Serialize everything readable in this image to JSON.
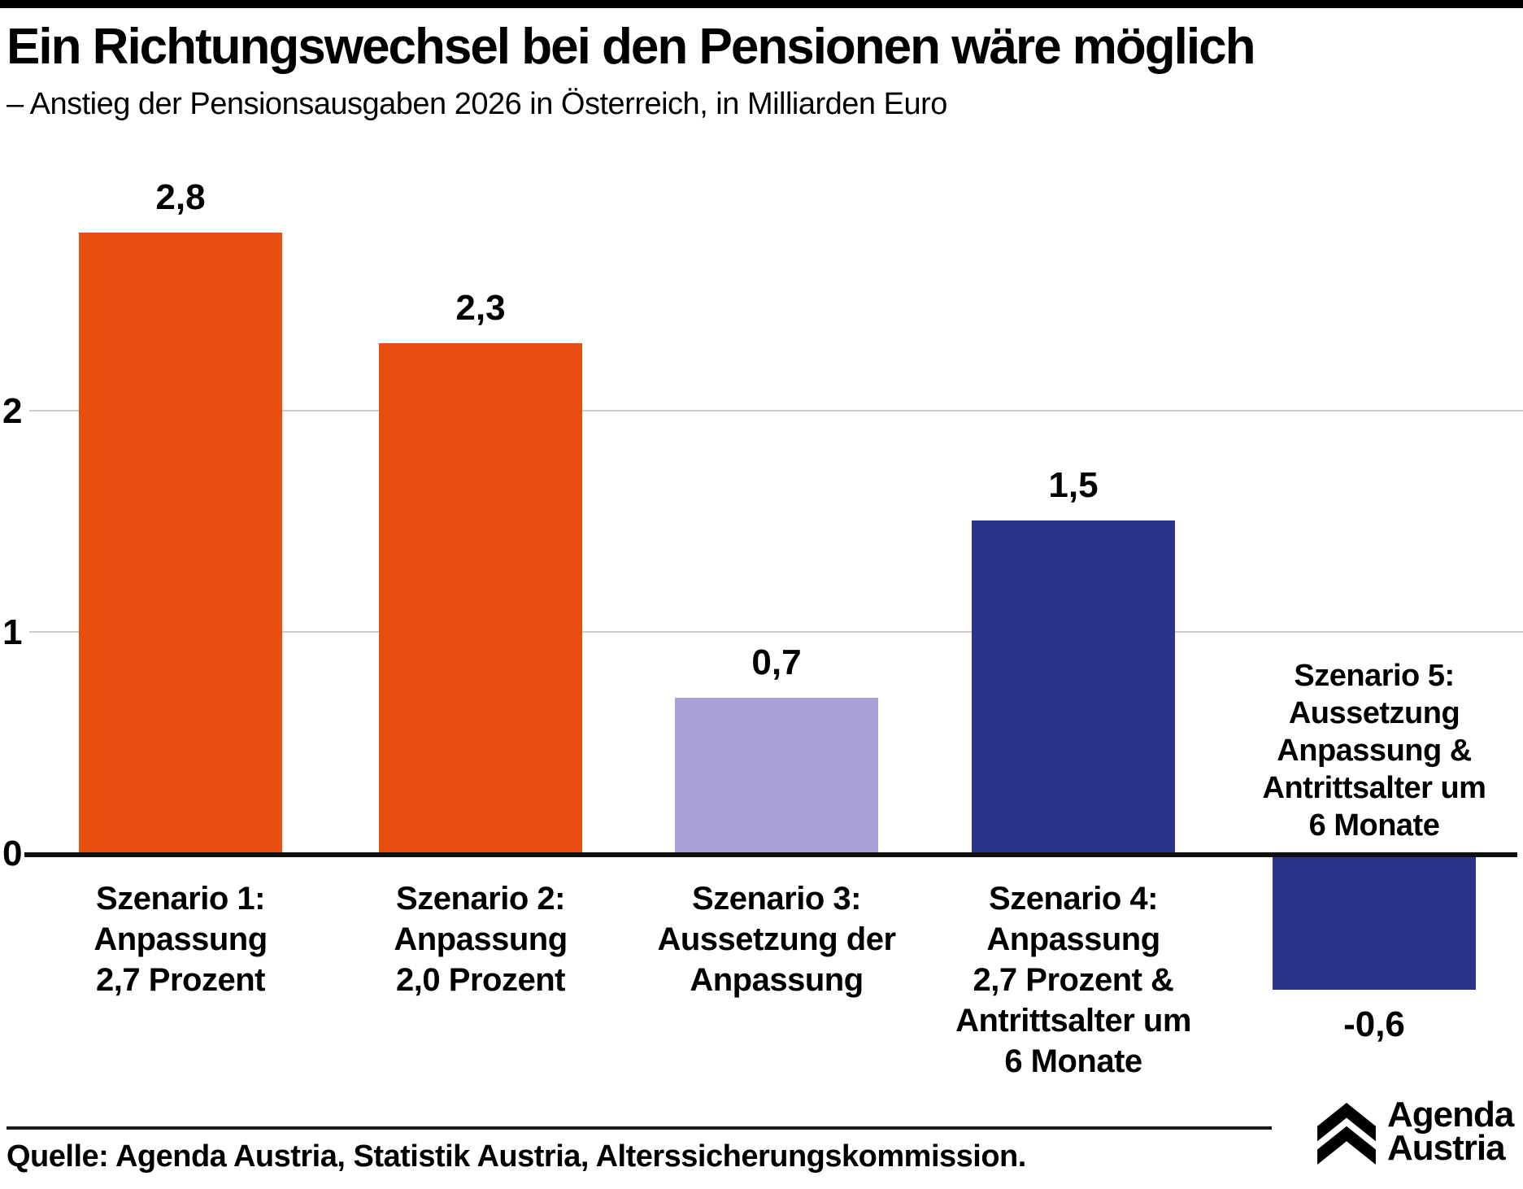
{
  "header": {
    "title": "Ein Richtungswechsel bei den Pensionen wäre möglich",
    "subtitle": "– Anstieg der Pensionsausgaben 2026 in Österreich, in Milliarden Euro"
  },
  "chart_data": {
    "type": "bar",
    "title": "Ein Richtungswechsel bei den Pensionen wäre möglich",
    "subtitle": "– Anstieg der Pensionsausgaben 2026 in Österreich, in Milliarden Euro",
    "unit": "Milliarden Euro",
    "categories": [
      {
        "lines": [
          "Szenario 1:",
          "Anpassung",
          "2,7 Prozent"
        ]
      },
      {
        "lines": [
          "Szenario 2:",
          "Anpassung",
          "2,0 Prozent"
        ]
      },
      {
        "lines": [
          "Szenario 3:",
          "Aussetzung der",
          "Anpassung"
        ]
      },
      {
        "lines": [
          "Szenario 4:",
          "Anpassung",
          "2,7 Prozent &",
          "Antrittsalter um",
          "6 Monate"
        ]
      },
      {
        "lines": [
          "Szenario 5:",
          "Aussetzung",
          "Anpassung &",
          "Antrittsalter um",
          "6 Monate"
        ]
      }
    ],
    "values": [
      2.8,
      2.3,
      0.7,
      1.5,
      -0.6
    ],
    "value_labels": [
      "2,8",
      "2,3",
      "0,7",
      "1,5",
      "-0,6"
    ],
    "bar_colors": [
      "#e84e10",
      "#e84e10",
      "#a8a1d6",
      "#2b338c",
      "#2b338c"
    ],
    "y_ticks": [
      2,
      1,
      0
    ],
    "ylim": [
      -0.8,
      3.0
    ],
    "grid": true,
    "legend": "none"
  },
  "colors": {
    "orange": "#e84e10",
    "light_purple": "#a8a1d6",
    "dark_blue": "#2b338c",
    "gridline": "#cbcbcb",
    "axis": "#101010"
  },
  "footer": {
    "source": "Quelle: Agenda Austria, Statistik Austria, Alterssicherungskommission.",
    "logo": {
      "line1": "Agenda",
      "line2": "Austria",
      "icon": "double-chevron-up"
    }
  }
}
